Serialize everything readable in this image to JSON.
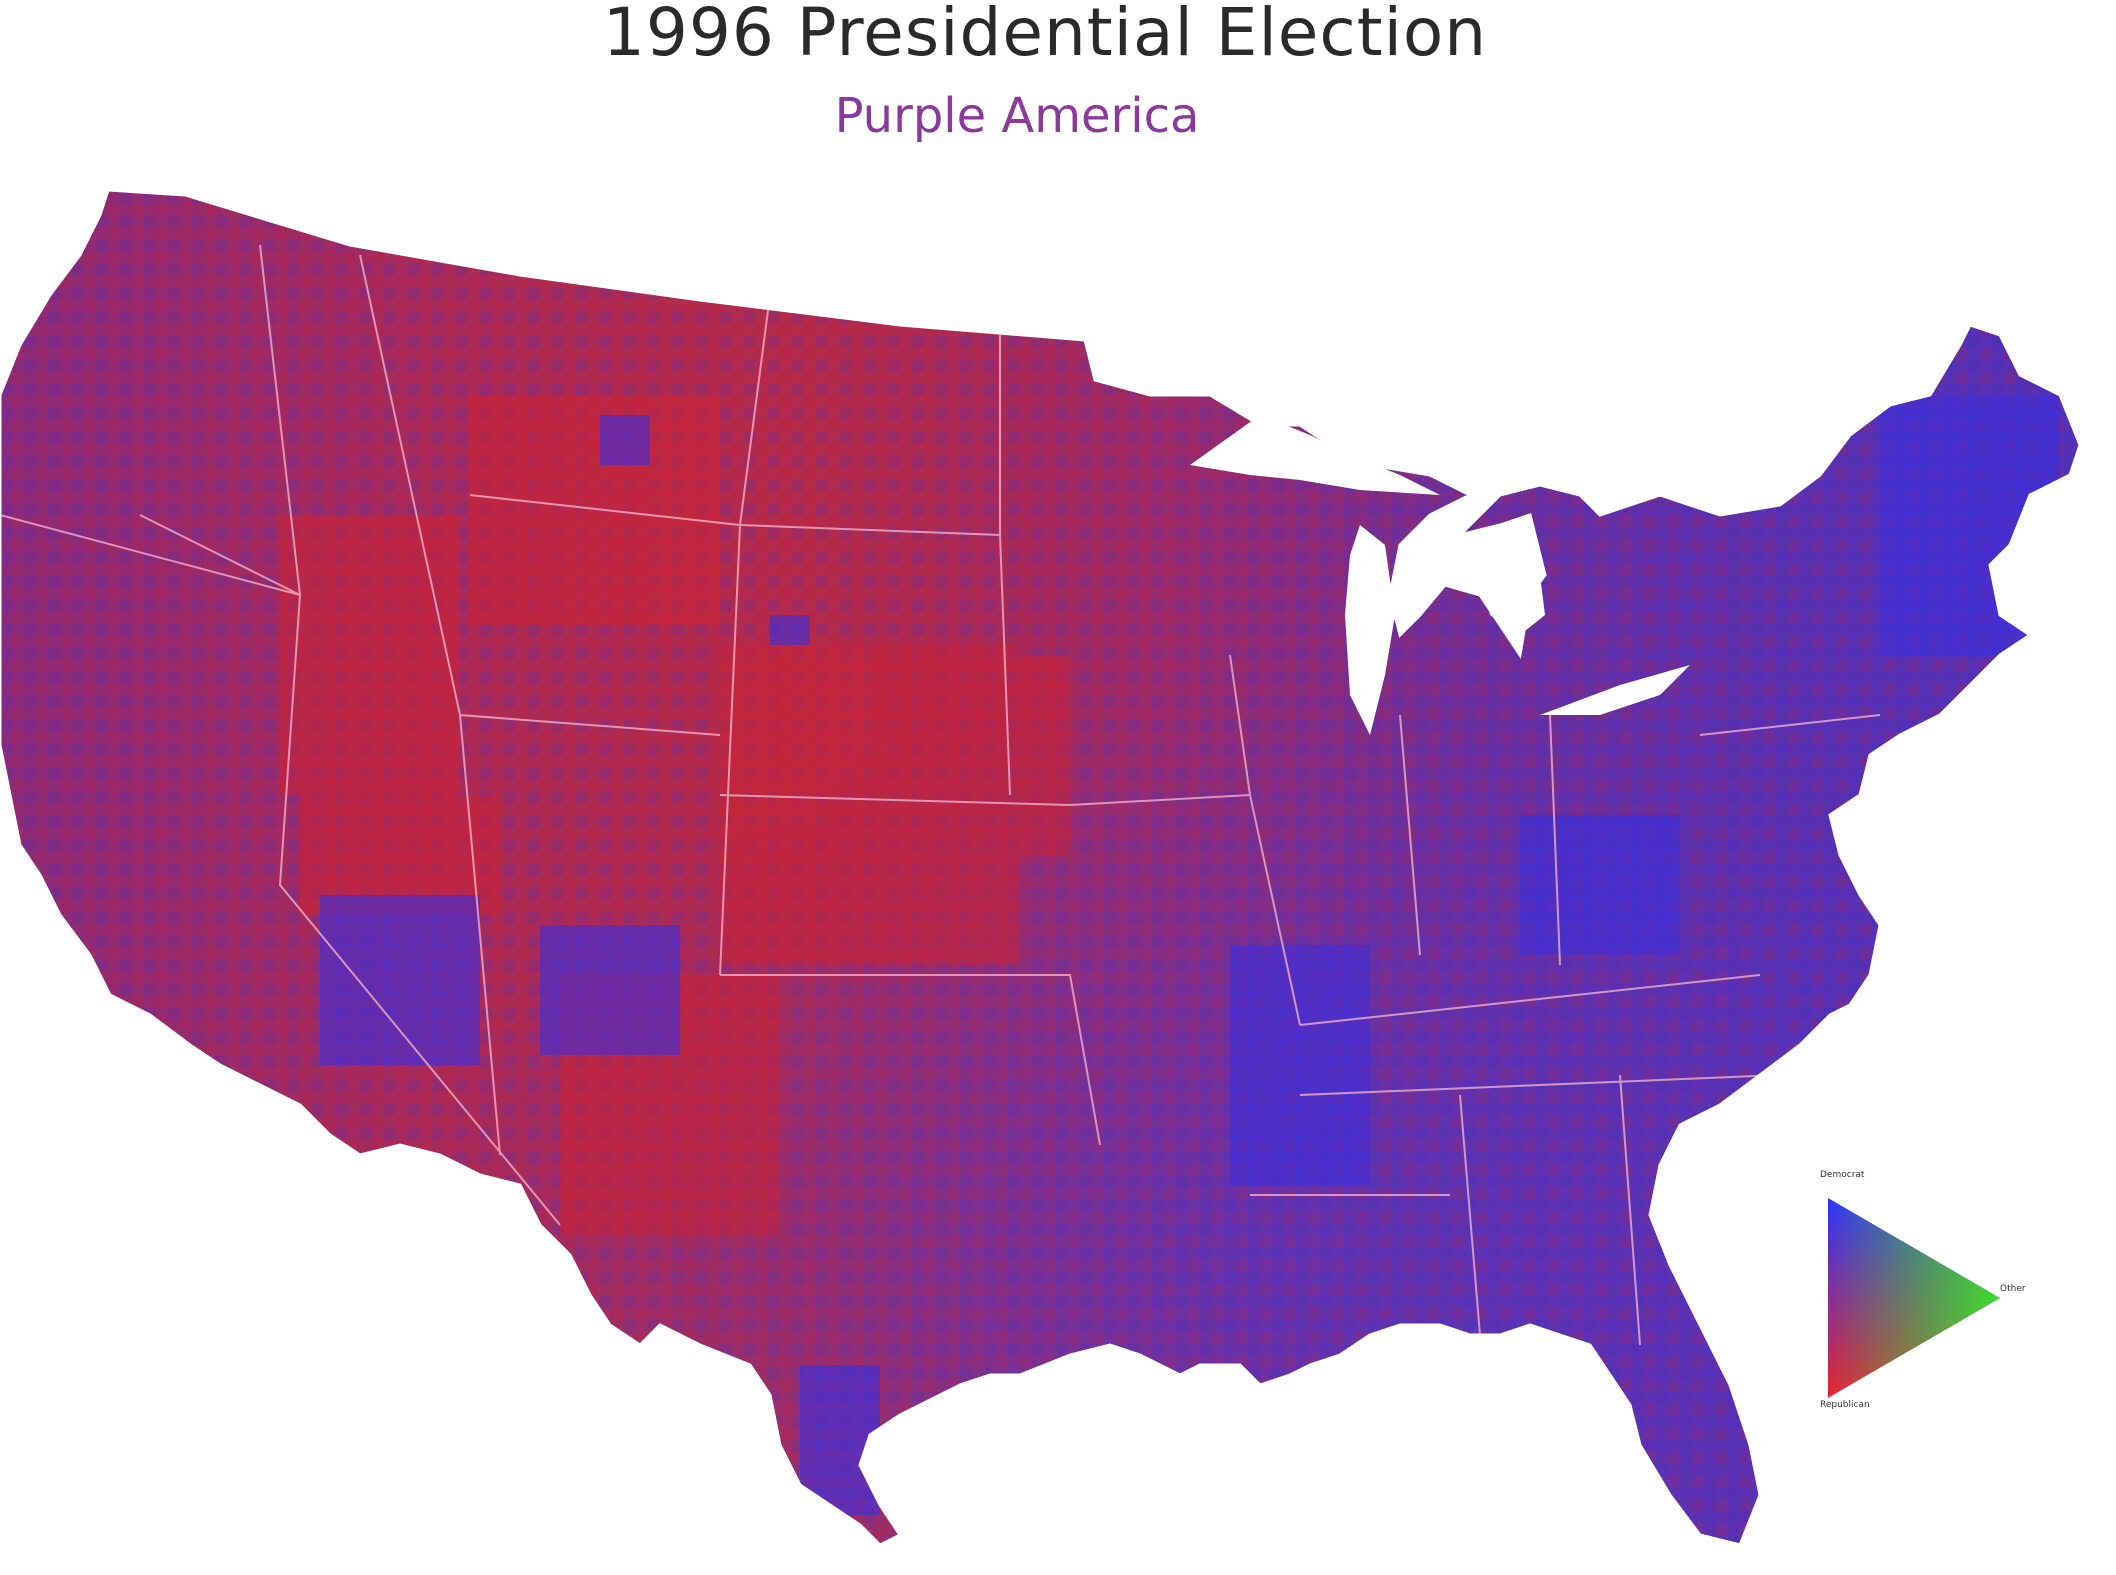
{
  "header": {
    "title": "1996 Presidential Election",
    "subtitle": "Purple America"
  },
  "legend": {
    "top_label": "Democrat",
    "right_label": "Other",
    "bottom_label": "Republican",
    "colors": {
      "democrat": "#2b35ff",
      "republican": "#e8232e",
      "other": "#3ddc2c"
    }
  },
  "map": {
    "colors": {
      "base_purple": "#7a2a8a",
      "red_purple": "#b02a5a",
      "blue_purple": "#4b30c0",
      "state_border": "#f2b0c8"
    }
  }
}
